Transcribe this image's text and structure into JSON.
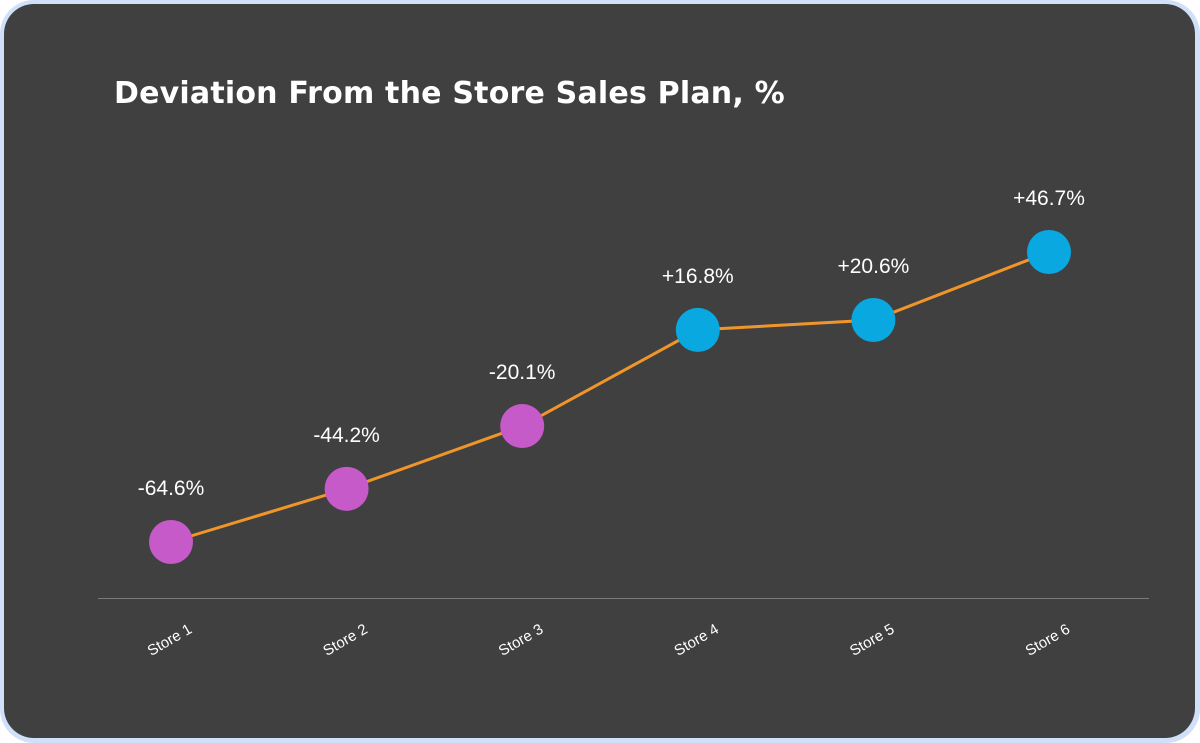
{
  "chart_data": {
    "type": "line",
    "title": "Deviation From the Store Sales Plan, %",
    "xlabel": "",
    "ylabel": "",
    "categories": [
      "Store 1",
      "Store 2",
      "Store 3",
      "Store 4",
      "Store 5",
      "Store 6"
    ],
    "series": [
      {
        "name": "Deviation",
        "values": [
          -64.6,
          -44.2,
          -20.1,
          16.8,
          20.6,
          46.7
        ],
        "labels": [
          "-64.6%",
          "-44.2%",
          "-20.1%",
          "+16.8%",
          "+20.6%",
          "+46.7%"
        ]
      }
    ],
    "grid": false,
    "legend": "none",
    "colors": {
      "line": "#f0952a",
      "negative_marker": "#c65ac8",
      "positive_marker": "#0aa8e1",
      "background": "#404040",
      "axis": "#7a7a7a",
      "frame": "#cfe0f8"
    }
  }
}
